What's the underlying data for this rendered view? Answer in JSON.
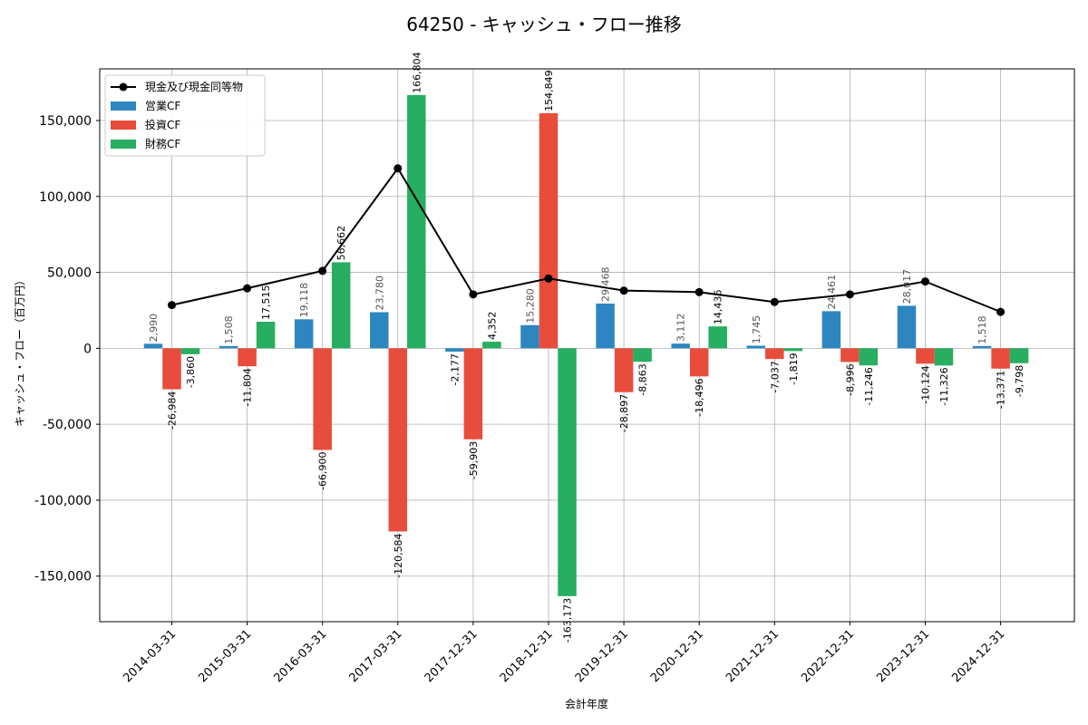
{
  "chart_data": {
    "type": "bar",
    "title": "64250 - キャッシュ・フロー推移",
    "xlabel": "会計年度",
    "ylabel": "キャッシュ・フロー（百万円）",
    "ylim": [
      -180000,
      184000
    ],
    "yticks": [
      -150000,
      -100000,
      -50000,
      0,
      50000,
      100000,
      150000
    ],
    "ytick_labels": [
      "-150,000",
      "-100,000",
      "-50,000",
      "0",
      "50,000",
      "100,000",
      "150,000"
    ],
    "grid": true,
    "legend_position": "top-left",
    "categories": [
      "2014-03-31",
      "2015-03-31",
      "2016-03-31",
      "2017-03-31",
      "2017-12-31",
      "2018-12-31",
      "2019-12-31",
      "2020-12-31",
      "2021-12-31",
      "2022-12-31",
      "2023-12-31",
      "2024-12-31"
    ],
    "series": [
      {
        "name": "営業CF",
        "kind": "bar",
        "color": "#2e86c1",
        "values": [
          2990,
          1508,
          19118,
          23780,
          -2177,
          15280,
          29468,
          3112,
          1745,
          24461,
          28017,
          1518
        ],
        "labels": [
          "2,990",
          "1,508",
          "19,118",
          "23,780",
          "-2,177",
          "15,280",
          "29,468",
          "3,112",
          "1,745",
          "24,461",
          "28,017",
          "1,518"
        ]
      },
      {
        "name": "投資CF",
        "kind": "bar",
        "color": "#e74c3c",
        "values": [
          -26984,
          -11804,
          -66900,
          -120584,
          -59903,
          154849,
          -28897,
          -18496,
          -7037,
          -8996,
          -10124,
          -13371
        ],
        "labels": [
          "-26,984",
          "-11,804",
          "-66,900",
          "-120,584",
          "-59,903",
          "154,849",
          "-28,897",
          "-18,496",
          "-7,037",
          "-8,996",
          "-10,124",
          "-13,371"
        ]
      },
      {
        "name": "財務CF",
        "kind": "bar",
        "color": "#27ae60",
        "values": [
          -3860,
          17515,
          56662,
          166804,
          4352,
          -163173,
          -8863,
          14436,
          -1819,
          -11246,
          -11326,
          -9798
        ],
        "labels": [
          "-3,860",
          "17,515",
          "56,662",
          "166,804",
          "4,352",
          "-163,173",
          "-8,863",
          "14,436",
          "-1,819",
          "-11,246",
          "-11,326",
          "-9,798"
        ]
      },
      {
        "name": "現金及び現金同等物",
        "kind": "line",
        "color": "#000000",
        "values": [
          28500,
          39500,
          51000,
          118500,
          35500,
          46000,
          38000,
          37000,
          30500,
          35500,
          44000,
          24000
        ]
      }
    ]
  }
}
